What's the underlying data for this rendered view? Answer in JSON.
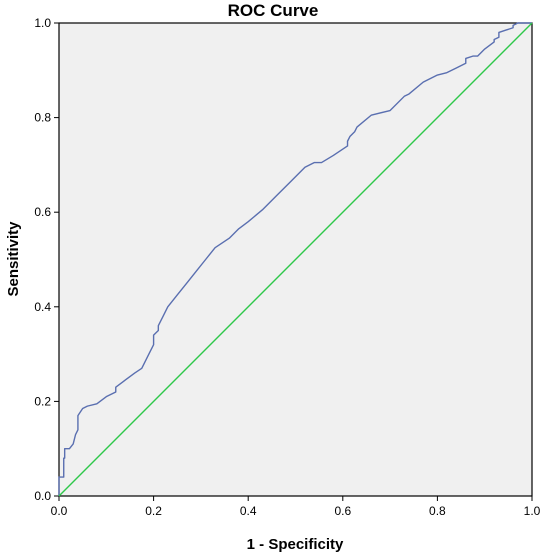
{
  "chart_data": {
    "type": "line",
    "title": "ROC Curve",
    "xlabel": "1 - Specificity",
    "ylabel": "Sensitivity",
    "xlim": [
      0,
      1
    ],
    "ylim": [
      0,
      1
    ],
    "grid": false,
    "x_ticks": [
      "0.0",
      "0.2",
      "0.4",
      "0.6",
      "0.8",
      "1.0"
    ],
    "y_ticks": [
      "0.0",
      "0.2",
      "0.4",
      "0.6",
      "0.8",
      "1.0"
    ],
    "plot_background": "#f0f0f0",
    "series": [
      {
        "color": "#5a6fb0",
        "x": [
          0.0,
          0.0,
          0.01,
          0.01,
          0.012,
          0.012,
          0.022,
          0.03,
          0.035,
          0.04,
          0.04,
          0.05,
          0.06,
          0.08,
          0.1,
          0.12,
          0.12,
          0.14,
          0.16,
          0.175,
          0.18,
          0.19,
          0.2,
          0.2,
          0.21,
          0.21,
          0.22,
          0.23,
          0.25,
          0.27,
          0.29,
          0.31,
          0.33,
          0.36,
          0.38,
          0.4,
          0.43,
          0.46,
          0.49,
          0.52,
          0.54,
          0.555,
          0.58,
          0.61,
          0.61,
          0.615,
          0.62,
          0.625,
          0.63,
          0.66,
          0.7,
          0.73,
          0.74,
          0.77,
          0.8,
          0.82,
          0.84,
          0.85,
          0.86,
          0.86,
          0.875,
          0.885,
          0.9,
          0.92,
          0.92,
          0.93,
          0.93,
          0.945,
          0.96,
          0.96,
          0.97,
          0.97,
          1.0
        ],
        "y": [
          0.0,
          0.04,
          0.04,
          0.08,
          0.08,
          0.1,
          0.1,
          0.11,
          0.13,
          0.14,
          0.17,
          0.185,
          0.19,
          0.195,
          0.21,
          0.22,
          0.23,
          0.245,
          0.26,
          0.27,
          0.28,
          0.3,
          0.32,
          0.34,
          0.35,
          0.36,
          0.38,
          0.4,
          0.425,
          0.45,
          0.475,
          0.5,
          0.525,
          0.545,
          0.565,
          0.58,
          0.605,
          0.635,
          0.665,
          0.695,
          0.705,
          0.705,
          0.72,
          0.74,
          0.75,
          0.76,
          0.765,
          0.77,
          0.78,
          0.805,
          0.815,
          0.845,
          0.85,
          0.875,
          0.89,
          0.895,
          0.905,
          0.91,
          0.915,
          0.925,
          0.93,
          0.93,
          0.945,
          0.96,
          0.965,
          0.97,
          0.98,
          0.985,
          0.99,
          0.995,
          1.0,
          1.0,
          1.0
        ]
      },
      {
        "color": "#2ec84a",
        "x": [
          0,
          1
        ],
        "y": [
          0,
          1
        ]
      }
    ]
  }
}
